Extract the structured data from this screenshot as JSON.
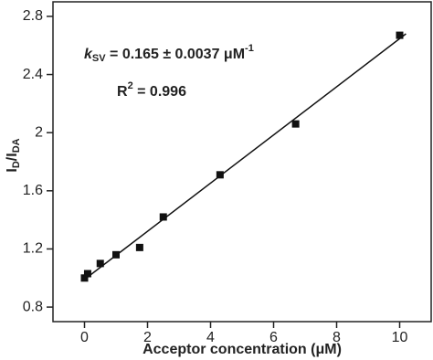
{
  "chart_data": {
    "type": "scatter",
    "x_label": "Acceptor concentration (μM)",
    "y_label": {
      "main": "I",
      "sub1": "D",
      "mid": "/I",
      "sub2": "DA"
    },
    "annotations": [
      {
        "italic": "k",
        "sub": "SV",
        "text": " = 0.165 ± 0.0037 μM",
        "sup": "-1"
      },
      {
        "text": "R",
        "sup": "2",
        "rest": " = 0.996"
      }
    ],
    "xlim": [
      -1,
      11
    ],
    "xticks": [
      0,
      2,
      4,
      6,
      8,
      10
    ],
    "ylim": [
      0.7,
      2.9
    ],
    "yticks": [
      0.8,
      1.2,
      1.6,
      2.0,
      2.4,
      2.8
    ],
    "series": [
      {
        "color": "#111111",
        "x": [
          0,
          0.1,
          0.5,
          1,
          1.75,
          2.5,
          4.3,
          6.7,
          10
        ],
        "values": [
          1.0,
          1.03,
          1.1,
          1.16,
          1.21,
          1.42,
          1.71,
          2.06,
          2.67
        ]
      }
    ],
    "fit": {
      "color": "#111111",
      "x": [
        0,
        10.2
      ],
      "values": [
        0.99,
        2.68
      ]
    }
  }
}
